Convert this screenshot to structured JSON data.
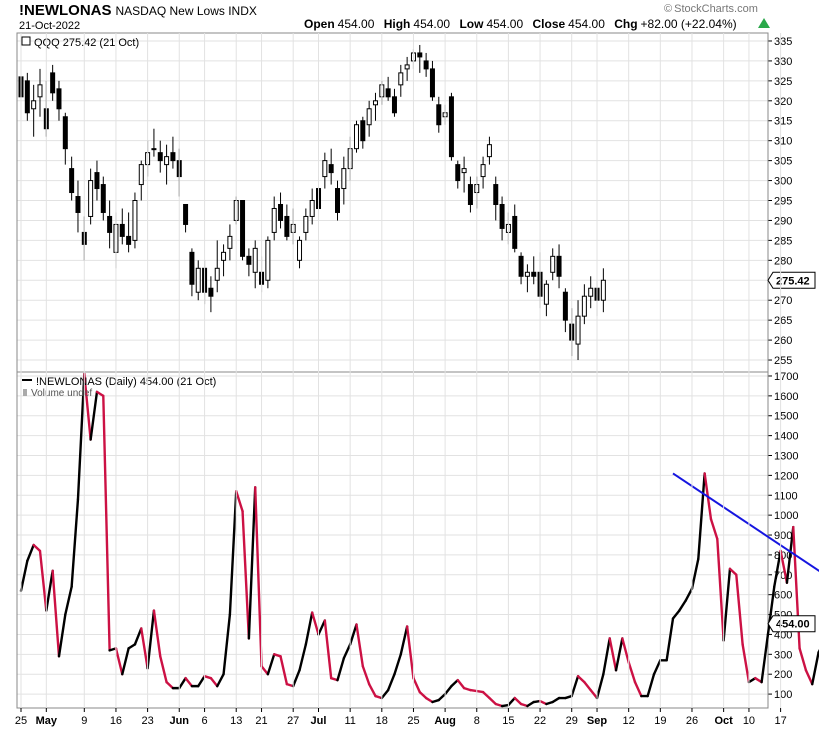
{
  "header": {
    "symbol": "!NEWLONAS",
    "description": "NASDAQ New Lows  INDX",
    "date": "21-Oct-2022",
    "open_label": "Open",
    "open": "454.00",
    "high_label": "High",
    "high": "454.00",
    "low_label": "Low",
    "low": "454.00",
    "close_label": "Close",
    "close": "454.00",
    "chg_label": "Chg",
    "chg": "+82.00 (+22.04%)",
    "brand": "StockCharts.com",
    "up_icon": "triangle-up-icon",
    "up_color": "#2aa84a"
  },
  "chart_data": [
    {
      "type": "candlestick",
      "legend": "QQQ 275.42 (21 Oct)",
      "last_value_label": "275.42",
      "ylim": [
        252,
        337
      ],
      "yticks": [
        255,
        260,
        265,
        270,
        275,
        280,
        285,
        290,
        295,
        300,
        305,
        310,
        315,
        320,
        325,
        330,
        335
      ],
      "up_color": "#ffffff",
      "down_color": "#000000",
      "ohlc": [
        [
          326,
          329,
          318,
          321
        ],
        [
          325,
          327,
          315,
          317
        ],
        [
          318,
          324,
          311,
          320
        ],
        [
          321,
          328,
          316,
          324
        ],
        [
          318,
          325,
          311,
          313
        ],
        [
          327,
          329,
          320,
          322
        ],
        [
          323,
          325,
          315,
          318
        ],
        [
          316,
          317,
          304,
          308
        ],
        [
          303,
          306,
          295,
          297
        ],
        [
          296,
          300,
          287,
          292
        ],
        [
          287,
          291,
          280,
          284
        ],
        [
          291,
          303,
          289,
          300
        ],
        [
          302,
          305,
          295,
          298
        ],
        [
          299,
          301,
          290,
          292
        ],
        [
          291,
          295,
          283,
          287
        ],
        [
          282,
          292,
          278,
          289
        ],
        [
          289,
          293,
          284,
          286
        ],
        [
          286,
          292,
          282,
          284
        ],
        [
          285,
          297,
          283,
          295
        ],
        [
          299,
          305,
          295,
          304
        ],
        [
          304,
          310,
          301,
          307
        ],
        [
          308,
          313,
          306,
          308
        ],
        [
          307,
          310,
          302,
          305
        ],
        [
          304,
          309,
          299,
          306
        ],
        [
          307,
          311,
          303,
          305
        ],
        [
          305,
          308,
          296,
          301
        ],
        [
          294,
          294,
          287,
          289
        ],
        [
          282,
          283,
          271,
          274
        ],
        [
          272,
          280,
          270,
          278
        ],
        [
          278,
          280,
          269,
          272
        ],
        [
          273,
          276,
          267,
          271
        ],
        [
          275,
          285,
          272,
          278
        ],
        [
          280,
          284,
          276,
          282
        ],
        [
          283,
          289,
          280,
          286
        ],
        [
          290,
          296,
          289,
          295
        ],
        [
          295,
          295,
          280,
          281
        ],
        [
          281,
          283,
          276,
          279
        ],
        [
          277,
          285,
          273,
          283
        ],
        [
          277,
          281,
          272,
          274
        ],
        [
          275,
          286,
          273,
          285
        ],
        [
          287,
          296,
          285,
          293
        ],
        [
          294,
          297,
          288,
          290
        ],
        [
          291,
          294,
          285,
          286
        ],
        [
          287,
          293,
          284,
          289
        ],
        [
          280,
          286,
          278,
          285
        ],
        [
          287,
          293,
          285,
          291
        ],
        [
          291,
          298,
          289,
          295
        ],
        [
          298,
          301,
          291,
          293
        ],
        [
          301,
          307,
          298,
          305
        ],
        [
          304,
          308,
          299,
          302
        ],
        [
          298,
          300,
          290,
          292
        ],
        [
          298,
          306,
          294,
          303
        ],
        [
          303,
          311,
          300,
          308
        ],
        [
          308,
          315,
          307,
          314
        ],
        [
          315,
          316,
          308,
          310
        ],
        [
          314,
          320,
          311,
          318
        ],
        [
          319,
          322,
          315,
          320
        ],
        [
          321,
          325,
          319,
          324
        ],
        [
          323,
          326,
          320,
          321
        ],
        [
          321,
          323,
          316,
          317
        ],
        [
          324,
          329,
          321,
          327
        ],
        [
          328,
          331,
          325,
          329
        ],
        [
          330,
          333,
          328,
          332
        ],
        [
          332,
          334,
          327,
          331
        ],
        [
          330,
          332,
          326,
          328
        ],
        [
          328,
          330,
          320,
          321
        ],
        [
          319,
          321,
          312,
          314
        ],
        [
          316,
          319,
          314,
          317
        ],
        [
          321,
          322,
          305,
          306
        ],
        [
          304,
          305,
          298,
          300
        ],
        [
          302,
          306,
          297,
          303
        ],
        [
          299,
          301,
          292,
          294
        ],
        [
          297,
          301,
          293,
          299
        ],
        [
          301,
          306,
          298,
          304
        ],
        [
          306,
          311,
          304,
          309
        ],
        [
          299,
          301,
          290,
          294
        ],
        [
          294,
          296,
          285,
          288
        ],
        [
          287,
          292,
          284,
          289
        ],
        [
          291,
          294,
          282,
          283
        ],
        [
          281,
          282,
          274,
          276
        ],
        [
          276,
          279,
          272,
          277
        ],
        [
          277,
          281,
          274,
          276
        ],
        [
          277,
          282,
          268,
          271
        ],
        [
          269,
          275,
          266,
          274
        ],
        [
          277,
          283,
          275,
          281
        ],
        [
          281,
          284,
          273,
          276
        ],
        [
          272,
          273,
          262,
          265
        ],
        [
          264,
          268,
          256,
          260
        ],
        [
          259,
          270,
          255,
          266
        ],
        [
          266,
          274,
          264,
          271
        ],
        [
          271,
          276,
          268,
          273
        ],
        [
          273,
          275,
          266,
          270
        ],
        [
          270,
          278,
          267,
          275
        ]
      ]
    },
    {
      "type": "line",
      "legend": "!NEWLONAS (Daily) 454.00 (21 Oct)",
      "sublegend": "Volume undef",
      "last_value_label": "454.00",
      "ylim": [
        30,
        1720
      ],
      "yticks": [
        100,
        200,
        300,
        400,
        500,
        600,
        700,
        800,
        900,
        1000,
        1100,
        1200,
        1300,
        1400,
        1500,
        1600,
        1700
      ],
      "x_tick_labels": [
        {
          "i": 0,
          "label": "25"
        },
        {
          "i": 4,
          "label": "May"
        },
        {
          "i": 10,
          "label": "9"
        },
        {
          "i": 15,
          "label": "16"
        },
        {
          "i": 20,
          "label": "23"
        },
        {
          "i": 25,
          "label": "Jun"
        },
        {
          "i": 29,
          "label": "6"
        },
        {
          "i": 34,
          "label": "13"
        },
        {
          "i": 38,
          "label": "21"
        },
        {
          "i": 43,
          "label": "27"
        },
        {
          "i": 47,
          "label": "Jul"
        },
        {
          "i": 52,
          "label": "11"
        },
        {
          "i": 57,
          "label": "18"
        },
        {
          "i": 62,
          "label": "25"
        },
        {
          "i": 67,
          "label": "Aug"
        },
        {
          "i": 72,
          "label": "8"
        },
        {
          "i": 77,
          "label": "15"
        },
        {
          "i": 82,
          "label": "22"
        },
        {
          "i": 87,
          "label": "29"
        },
        {
          "i": 91,
          "label": "Sep"
        },
        {
          "i": 96,
          "label": "12"
        },
        {
          "i": 101,
          "label": "19"
        },
        {
          "i": 106,
          "label": "26"
        },
        {
          "i": 111,
          "label": "Oct"
        },
        {
          "i": 115,
          "label": "10"
        },
        {
          "i": 120,
          "label": "17"
        }
      ],
      "up_color": "#000000",
      "down_color": "#cc1144",
      "trendline_color": "#1515e0",
      "trendline": {
        "start_i": 103,
        "start_value": 1210,
        "end_i": 127,
        "end_value": 700
      },
      "values": [
        620,
        770,
        850,
        820,
        520,
        720,
        290,
        500,
        640,
        1080,
        1710,
        1380,
        1620,
        1600,
        320,
        330,
        200,
        330,
        350,
        430,
        230,
        520,
        290,
        160,
        130,
        130,
        180,
        140,
        140,
        190,
        180,
        140,
        200,
        500,
        1120,
        1020,
        380,
        1140,
        240,
        200,
        300,
        290,
        150,
        140,
        220,
        350,
        510,
        400,
        470,
        180,
        170,
        280,
        350,
        450,
        240,
        150,
        90,
        80,
        120,
        200,
        300,
        440,
        180,
        110,
        80,
        60,
        70,
        100,
        140,
        170,
        130,
        120,
        115,
        110,
        80,
        50,
        40,
        45,
        80,
        50,
        40,
        60,
        65,
        50,
        60,
        80,
        80,
        90,
        190,
        160,
        120,
        80,
        200,
        380,
        220,
        380,
        260,
        160,
        90,
        90,
        200,
        270,
        270,
        480,
        520,
        570,
        630,
        780,
        1210,
        980,
        880,
        370,
        730,
        700,
        350,
        160,
        180,
        160,
        400,
        640,
        820,
        660,
        940,
        330,
        220,
        150,
        310,
        370,
        454
      ]
    }
  ]
}
